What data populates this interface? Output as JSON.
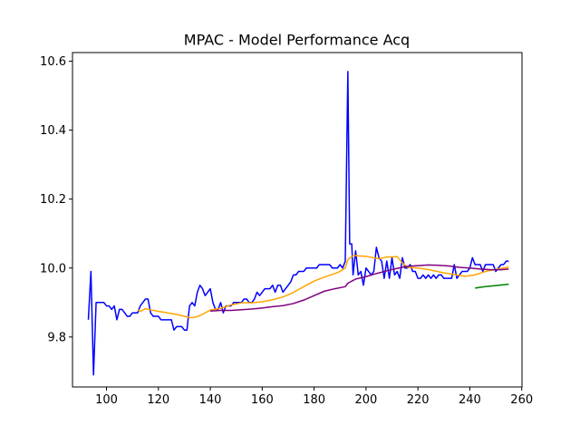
{
  "chart_data": {
    "type": "line",
    "title": "MPAC - Model Performance Acq",
    "xlabel": "",
    "ylabel": "",
    "xlim": [
      86.9,
      260.1
    ],
    "ylim": [
      9.655,
      10.625
    ],
    "xticks": [
      100,
      120,
      140,
      160,
      180,
      200,
      220,
      240,
      260
    ],
    "yticks": [
      9.8,
      10.0,
      10.2,
      10.4,
      10.6
    ],
    "ytick_labels": [
      "9.8",
      "10.0",
      "10.2",
      "10.4",
      "10.6"
    ],
    "grid": false,
    "legend": "none",
    "series": [
      {
        "color": "#0000ff",
        "points": [
          [
            93,
            9.85
          ],
          [
            94,
            9.99
          ],
          [
            95,
            9.69
          ],
          [
            96,
            9.9
          ],
          [
            97,
            9.9
          ],
          [
            98,
            9.9
          ],
          [
            99,
            9.9
          ],
          [
            100,
            9.89
          ],
          [
            101,
            9.89
          ],
          [
            102,
            9.88
          ],
          [
            103,
            9.89
          ],
          [
            104,
            9.85
          ],
          [
            105,
            9.88
          ],
          [
            106,
            9.88
          ],
          [
            107,
            9.87
          ],
          [
            108,
            9.86
          ],
          [
            109,
            9.86
          ],
          [
            110,
            9.87
          ],
          [
            111,
            9.87
          ],
          [
            112,
            9.87
          ],
          [
            113,
            9.89
          ],
          [
            114,
            9.9
          ],
          [
            115,
            9.91
          ],
          [
            116,
            9.91
          ],
          [
            117,
            9.87
          ],
          [
            118,
            9.86
          ],
          [
            119,
            9.86
          ],
          [
            120,
            9.86
          ],
          [
            121,
            9.85
          ],
          [
            122,
            9.85
          ],
          [
            123,
            9.85
          ],
          [
            124,
            9.85
          ],
          [
            125,
            9.85
          ],
          [
            126,
            9.82
          ],
          [
            127,
            9.83
          ],
          [
            128,
            9.83
          ],
          [
            129,
            9.83
          ],
          [
            130,
            9.82
          ],
          [
            131,
            9.82
          ],
          [
            132,
            9.89
          ],
          [
            133,
            9.9
          ],
          [
            134,
            9.89
          ],
          [
            135,
            9.93
          ],
          [
            136,
            9.95
          ],
          [
            137,
            9.94
          ],
          [
            138,
            9.92
          ],
          [
            139,
            9.93
          ],
          [
            140,
            9.94
          ],
          [
            141,
            9.9
          ],
          [
            142,
            9.88
          ],
          [
            143,
            9.88
          ],
          [
            144,
            9.9
          ],
          [
            145,
            9.87
          ],
          [
            146,
            9.89
          ],
          [
            147,
            9.89
          ],
          [
            148,
            9.89
          ],
          [
            149,
            9.9
          ],
          [
            150,
            9.9
          ],
          [
            151,
            9.9
          ],
          [
            152,
            9.9
          ],
          [
            153,
            9.91
          ],
          [
            154,
            9.91
          ],
          [
            155,
            9.9
          ],
          [
            156,
            9.9
          ],
          [
            157,
            9.91
          ],
          [
            158,
            9.93
          ],
          [
            159,
            9.92
          ],
          [
            160,
            9.93
          ],
          [
            161,
            9.94
          ],
          [
            162,
            9.94
          ],
          [
            163,
            9.94
          ],
          [
            164,
            9.95
          ],
          [
            165,
            9.93
          ],
          [
            166,
            9.95
          ],
          [
            167,
            9.95
          ],
          [
            168,
            9.93
          ],
          [
            169,
            9.94
          ],
          [
            170,
            9.95
          ],
          [
            171,
            9.96
          ],
          [
            172,
            9.98
          ],
          [
            173,
            9.98
          ],
          [
            174,
            9.99
          ],
          [
            175,
            9.99
          ],
          [
            176,
            9.99
          ],
          [
            177,
            10.0
          ],
          [
            178,
            10.0
          ],
          [
            179,
            10.0
          ],
          [
            180,
            10.0
          ],
          [
            181,
            10.0
          ],
          [
            182,
            10.01
          ],
          [
            183,
            10.01
          ],
          [
            184,
            10.01
          ],
          [
            185,
            10.01
          ],
          [
            186,
            10.01
          ],
          [
            187,
            10.0
          ],
          [
            188,
            10.0
          ],
          [
            189,
            10.0
          ],
          [
            190,
            10.01
          ],
          [
            191,
            10.0
          ],
          [
            192,
            10.02
          ],
          [
            193,
            10.57
          ],
          [
            193.7,
            10.07
          ],
          [
            194.5,
            10.07
          ],
          [
            195,
            9.98
          ],
          [
            196,
            10.05
          ],
          [
            197,
            9.98
          ],
          [
            198,
            9.99
          ],
          [
            199,
            9.95
          ],
          [
            200,
            10.0
          ],
          [
            201,
            9.99
          ],
          [
            202,
            9.98
          ],
          [
            203,
            9.99
          ],
          [
            204,
            10.06
          ],
          [
            205,
            10.03
          ],
          [
            206,
            10.02
          ],
          [
            207,
            9.97
          ],
          [
            208,
            10.02
          ],
          [
            209,
            9.97
          ],
          [
            210,
            10.03
          ],
          [
            211,
            9.98
          ],
          [
            212,
            9.99
          ],
          [
            213,
            9.97
          ],
          [
            214,
            10.03
          ],
          [
            215,
            10.0
          ],
          [
            216,
            10.0
          ],
          [
            217,
            10.01
          ],
          [
            218,
            9.99
          ],
          [
            219,
            9.99
          ],
          [
            220,
            9.97
          ],
          [
            221,
            9.97
          ],
          [
            222,
            9.98
          ],
          [
            223,
            9.97
          ],
          [
            224,
            9.98
          ],
          [
            225,
            9.97
          ],
          [
            226,
            9.98
          ],
          [
            227,
            9.97
          ],
          [
            228,
            9.98
          ],
          [
            229,
            9.98
          ],
          [
            230,
            9.97
          ],
          [
            231,
            9.97
          ],
          [
            232,
            9.97
          ],
          [
            233,
            9.97
          ],
          [
            234,
            10.01
          ],
          [
            235,
            9.97
          ],
          [
            236,
            9.98
          ],
          [
            237,
            9.99
          ],
          [
            238,
            9.99
          ],
          [
            239,
            9.99
          ],
          [
            240,
            10.0
          ],
          [
            241,
            10.03
          ],
          [
            242,
            10.01
          ],
          [
            243,
            10.01
          ],
          [
            244,
            10.01
          ],
          [
            245,
            9.99
          ],
          [
            246,
            10.01
          ],
          [
            247,
            10.01
          ],
          [
            248,
            10.01
          ],
          [
            249,
            10.01
          ],
          [
            250,
            9.99
          ],
          [
            251,
            10.0
          ],
          [
            252,
            10.01
          ],
          [
            253,
            10.01
          ],
          [
            254,
            10.02
          ],
          [
            255,
            10.02
          ]
        ]
      },
      {
        "color": "#ffa500",
        "points": [
          [
            112,
            9.88
          ],
          [
            113,
            9.874
          ],
          [
            115,
            9.882
          ],
          [
            118,
            9.877
          ],
          [
            122,
            9.872
          ],
          [
            126,
            9.867
          ],
          [
            130,
            9.86
          ],
          [
            132,
            9.856
          ],
          [
            134,
            9.857
          ],
          [
            136,
            9.862
          ],
          [
            138,
            9.87
          ],
          [
            140,
            9.878
          ],
          [
            144,
            9.883
          ],
          [
            148,
            9.893
          ],
          [
            152,
            9.899
          ],
          [
            156,
            9.899
          ],
          [
            160,
            9.902
          ],
          [
            164,
            9.908
          ],
          [
            168,
            9.916
          ],
          [
            172,
            9.929
          ],
          [
            176,
            9.946
          ],
          [
            180,
            9.962
          ],
          [
            184,
            9.974
          ],
          [
            188,
            9.984
          ],
          [
            190,
            9.99
          ],
          [
            192,
            10.0
          ],
          [
            193,
            10.025
          ],
          [
            195,
            10.036
          ],
          [
            200,
            10.034
          ],
          [
            205,
            10.027
          ],
          [
            208,
            10.032
          ],
          [
            212,
            10.033
          ],
          [
            214,
            10.015
          ],
          [
            216,
            10.002
          ],
          [
            220,
            10.0
          ],
          [
            225,
            9.994
          ],
          [
            230,
            9.986
          ],
          [
            235,
            9.98
          ],
          [
            238,
            9.976
          ],
          [
            242,
            9.98
          ],
          [
            246,
            9.99
          ],
          [
            250,
            9.996
          ],
          [
            255,
            10.003
          ]
        ]
      },
      {
        "color": "#800080",
        "points": [
          [
            140,
            9.875
          ],
          [
            144,
            9.877
          ],
          [
            148,
            9.877
          ],
          [
            152,
            9.879
          ],
          [
            156,
            9.881
          ],
          [
            160,
            9.884
          ],
          [
            164,
            9.888
          ],
          [
            168,
            9.891
          ],
          [
            172,
            9.897
          ],
          [
            176,
            9.907
          ],
          [
            180,
            9.92
          ],
          [
            184,
            9.933
          ],
          [
            188,
            9.94
          ],
          [
            192,
            9.946
          ],
          [
            193,
            9.956
          ],
          [
            196,
            9.968
          ],
          [
            200,
            9.975
          ],
          [
            204,
            9.984
          ],
          [
            208,
            9.992
          ],
          [
            212,
            9.999
          ],
          [
            216,
            10.005
          ],
          [
            220,
            10.007
          ],
          [
            224,
            10.009
          ],
          [
            228,
            10.008
          ],
          [
            232,
            10.006
          ],
          [
            236,
            10.002
          ],
          [
            240,
            10.0
          ],
          [
            244,
            9.997
          ],
          [
            248,
            9.995
          ],
          [
            252,
            9.995
          ],
          [
            255,
            9.997
          ]
        ]
      },
      {
        "color": "#008000",
        "points": [
          [
            242,
            9.942
          ],
          [
            246,
            9.946
          ],
          [
            250,
            9.949
          ],
          [
            255,
            9.953
          ]
        ]
      }
    ]
  }
}
